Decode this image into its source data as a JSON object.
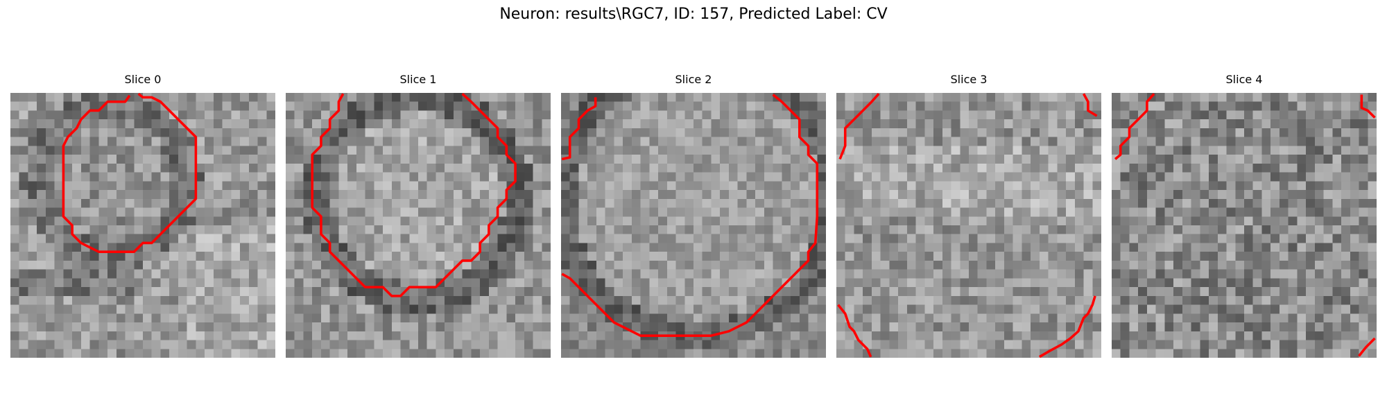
{
  "figure": {
    "title": "Neuron: results\\RGC7, ID: 157, Predicted Label: CV"
  },
  "colors": {
    "contour": "#ff0000",
    "background": "#ffffff"
  },
  "panels": [
    {
      "title": "Slice 0"
    },
    {
      "title": "Slice 1"
    },
    {
      "title": "Slice 2"
    },
    {
      "title": "Slice 3"
    },
    {
      "title": "Slice 4"
    }
  ]
}
